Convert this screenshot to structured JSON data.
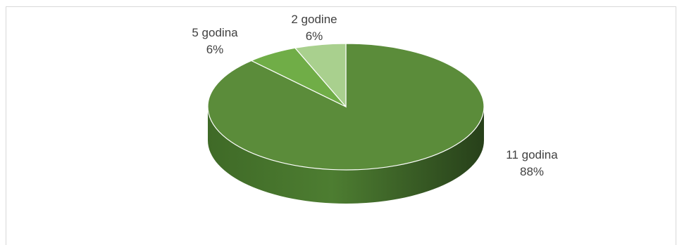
{
  "chart_data": {
    "type": "pie",
    "style": "3d",
    "title": "",
    "slices": [
      {
        "label": "11 godina",
        "value": 88,
        "pct_label": "88%",
        "color": "#5b8c3a"
      },
      {
        "label": "5 godina",
        "value": 6,
        "pct_label": "6%",
        "color": "#70ad47"
      },
      {
        "label": "2 godine",
        "value": 6,
        "pct_label": "6%",
        "color": "#a9d08e"
      }
    ],
    "legend": "none"
  }
}
